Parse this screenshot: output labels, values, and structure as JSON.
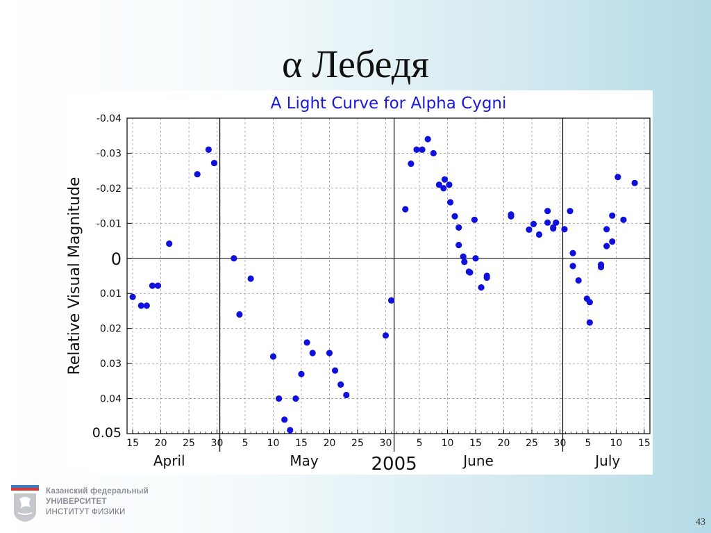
{
  "slide": {
    "title": "α Лебедя",
    "page_number": "43"
  },
  "institution": {
    "line1": "Казанский федеральный",
    "line2": "УНИВЕРСИТЕТ",
    "line3": "ИНСТИТУТ ФИЗИКИ"
  },
  "chart_data": {
    "type": "scatter",
    "title": "A Light Curve for Alpha Cygni",
    "xlabel": "2005",
    "ylabel": "Relative Visual Magnitude",
    "y_inverted": true,
    "ylim": [
      -0.04,
      0.05
    ],
    "y_ticks": [
      -0.04,
      -0.03,
      -0.02,
      -0.01,
      0,
      0.01,
      0.02,
      0.03,
      0.04,
      0.05
    ],
    "y_tick_labels": [
      "-0.04",
      "-0.03",
      "-0.02",
      "-0.01",
      "0",
      "0.01",
      "0.02",
      "0.03",
      "0.04",
      "0.05"
    ],
    "zero_line": 0,
    "x_unit": "day of year 2005",
    "xlim": [
      104,
      197
    ],
    "grid": true,
    "marker_color": "#1010dd",
    "title_color": "#1a1ad8",
    "month_boundaries": [
      120.5,
      151.5,
      181.5
    ],
    "x_ticks": [
      {
        "day": 105,
        "label": "15"
      },
      {
        "day": 110,
        "label": "20"
      },
      {
        "day": 115,
        "label": "25"
      },
      {
        "day": 120,
        "label": "30"
      },
      {
        "day": 125,
        "label": "5"
      },
      {
        "day": 130,
        "label": "10"
      },
      {
        "day": 135,
        "label": "15"
      },
      {
        "day": 140,
        "label": "20"
      },
      {
        "day": 145,
        "label": "25"
      },
      {
        "day": 150,
        "label": "30"
      },
      {
        "day": 156,
        "label": "5"
      },
      {
        "day": 161,
        "label": "10"
      },
      {
        "day": 166,
        "label": "15"
      },
      {
        "day": 171,
        "label": "20"
      },
      {
        "day": 176,
        "label": "25"
      },
      {
        "day": 181,
        "label": "30"
      },
      {
        "day": 186,
        "label": "5"
      },
      {
        "day": 191,
        "label": "10"
      },
      {
        "day": 196,
        "label": "15"
      }
    ],
    "months": [
      {
        "name": "April",
        "day": 111.5
      },
      {
        "name": "May",
        "day": 135.5
      },
      {
        "name": "June",
        "day": 166.5
      },
      {
        "name": "July",
        "day": 189.5
      }
    ],
    "points": [
      {
        "x": 105.0,
        "y": 0.011
      },
      {
        "x": 106.5,
        "y": 0.0135
      },
      {
        "x": 107.5,
        "y": 0.0135
      },
      {
        "x": 108.5,
        "y": 0.0078
      },
      {
        "x": 109.5,
        "y": 0.0078
      },
      {
        "x": 111.5,
        "y": -0.0042
      },
      {
        "x": 116.5,
        "y": -0.024
      },
      {
        "x": 118.5,
        "y": -0.031
      },
      {
        "x": 119.5,
        "y": -0.0272
      },
      {
        "x": 123.0,
        "y": 0.0
      },
      {
        "x": 124.0,
        "y": 0.016
      },
      {
        "x": 126.0,
        "y": 0.0058
      },
      {
        "x": 130.0,
        "y": 0.028
      },
      {
        "x": 131.0,
        "y": 0.04
      },
      {
        "x": 132.0,
        "y": 0.046
      },
      {
        "x": 133.0,
        "y": 0.049
      },
      {
        "x": 134.0,
        "y": 0.04
      },
      {
        "x": 135.0,
        "y": 0.033
      },
      {
        "x": 136.0,
        "y": 0.024
      },
      {
        "x": 137.0,
        "y": 0.027
      },
      {
        "x": 140.0,
        "y": 0.027
      },
      {
        "x": 141.0,
        "y": 0.032
      },
      {
        "x": 142.0,
        "y": 0.036
      },
      {
        "x": 143.0,
        "y": 0.039
      },
      {
        "x": 150.0,
        "y": 0.022
      },
      {
        "x": 151.0,
        "y": 0.012
      },
      {
        "x": 153.5,
        "y": -0.014
      },
      {
        "x": 154.5,
        "y": -0.027
      },
      {
        "x": 155.5,
        "y": -0.031
      },
      {
        "x": 156.5,
        "y": -0.031
      },
      {
        "x": 157.5,
        "y": -0.034
      },
      {
        "x": 158.5,
        "y": -0.03
      },
      {
        "x": 159.5,
        "y": -0.021
      },
      {
        "x": 160.3,
        "y": -0.02
      },
      {
        "x": 160.5,
        "y": -0.0225
      },
      {
        "x": 161.3,
        "y": -0.021
      },
      {
        "x": 161.5,
        "y": -0.016
      },
      {
        "x": 162.3,
        "y": -0.012
      },
      {
        "x": 163.0,
        "y": -0.0088
      },
      {
        "x": 163.0,
        "y": -0.0038
      },
      {
        "x": 163.8,
        "y": -0.0005
      },
      {
        "x": 164.0,
        "y": 0.001
      },
      {
        "x": 164.8,
        "y": 0.0038
      },
      {
        "x": 165.0,
        "y": 0.004
      },
      {
        "x": 165.8,
        "y": -0.011
      },
      {
        "x": 166.0,
        "y": 0.0
      },
      {
        "x": 167.0,
        "y": 0.0083
      },
      {
        "x": 168.0,
        "y": 0.0055
      },
      {
        "x": 168.0,
        "y": 0.005
      },
      {
        "x": 172.3,
        "y": -0.012
      },
      {
        "x": 172.3,
        "y": -0.0125
      },
      {
        "x": 175.5,
        "y": -0.0082
      },
      {
        "x": 176.3,
        "y": -0.0098
      },
      {
        "x": 177.3,
        "y": -0.0068
      },
      {
        "x": 178.8,
        "y": -0.0135
      },
      {
        "x": 178.8,
        "y": -0.0102
      },
      {
        "x": 179.8,
        "y": -0.0085
      },
      {
        "x": 179.8,
        "y": -0.0088
      },
      {
        "x": 180.3,
        "y": -0.0102
      },
      {
        "x": 181.8,
        "y": -0.0083
      },
      {
        "x": 182.8,
        "y": -0.0135
      },
      {
        "x": 183.3,
        "y": 0.0022
      },
      {
        "x": 183.3,
        "y": -0.0015
      },
      {
        "x": 184.3,
        "y": 0.0063
      },
      {
        "x": 185.8,
        "y": 0.0115
      },
      {
        "x": 186.3,
        "y": 0.0125
      },
      {
        "x": 186.3,
        "y": 0.0183
      },
      {
        "x": 188.3,
        "y": 0.0025
      },
      {
        "x": 188.3,
        "y": 0.0018
      },
      {
        "x": 189.3,
        "y": -0.0083
      },
      {
        "x": 189.3,
        "y": -0.0035
      },
      {
        "x": 190.3,
        "y": -0.0122
      },
      {
        "x": 190.3,
        "y": -0.0048
      },
      {
        "x": 191.3,
        "y": -0.0232
      },
      {
        "x": 192.3,
        "y": -0.011
      },
      {
        "x": 194.3,
        "y": -0.0215
      }
    ]
  }
}
